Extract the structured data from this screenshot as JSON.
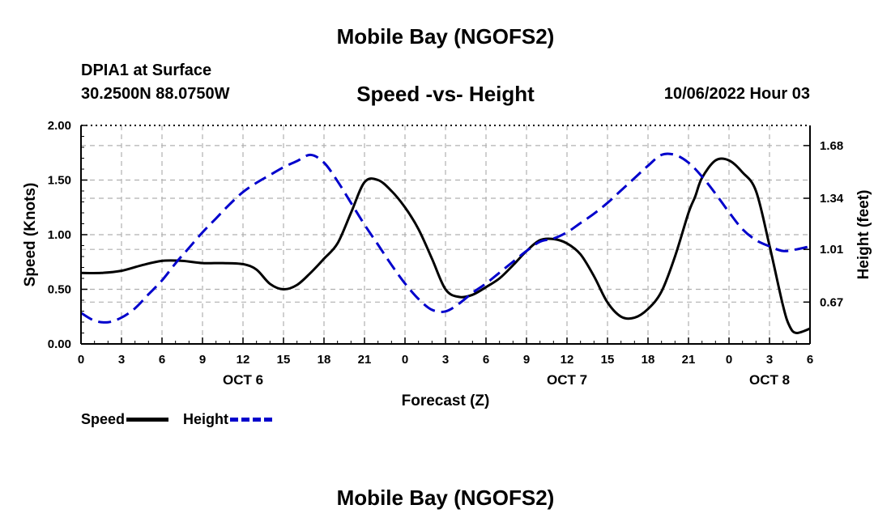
{
  "header": {
    "page_title": "Mobile Bay (NGOFS2)",
    "station": "DPIA1 at Surface",
    "coords": "30.2500N   88.0750W",
    "date": "10/06/2022 Hour 03",
    "footer_title": "Mobile Bay (NGOFS2)"
  },
  "colors": {
    "speed": "#000000",
    "height": "#0000cc",
    "grid": "#b0b0b0"
  },
  "chart_data": {
    "type": "line",
    "title": "Speed -vs- Height",
    "xlabel": "Forecast (Z)",
    "ylabel": "Speed (Knots)",
    "y2label": "Height (feet)",
    "xlim": [
      0,
      54
    ],
    "ylim": [
      0,
      2.0
    ],
    "y2lim": [
      0.4,
      1.81
    ],
    "x_ticks": [
      0,
      3,
      6,
      9,
      12,
      15,
      18,
      21,
      24,
      27,
      30,
      33,
      36,
      39,
      42,
      45,
      48,
      51,
      54
    ],
    "x_tick_labels": [
      "0",
      "3",
      "6",
      "9",
      "12",
      "15",
      "18",
      "21",
      "0",
      "3",
      "6",
      "9",
      "12",
      "15",
      "18",
      "21",
      "0",
      "3",
      "6"
    ],
    "date_labels": [
      {
        "x": 12,
        "label": "OCT 6"
      },
      {
        "x": 36,
        "label": "OCT 7"
      },
      {
        "x": 51,
        "label": "OCT 8"
      }
    ],
    "y_ticks": [
      0.0,
      0.5,
      1.0,
      1.5,
      2.0
    ],
    "y_tick_labels": [
      "0.00",
      "0.50",
      "1.00",
      "1.50",
      "2.00"
    ],
    "y2_ticks": [
      0.67,
      1.01,
      1.34,
      1.68
    ],
    "y2_tick_labels": [
      "0.67",
      "1.01",
      "1.34",
      "1.68"
    ],
    "legend": [
      {
        "name": "Speed",
        "style": "solid"
      },
      {
        "name": "Height",
        "style": "dashed"
      }
    ],
    "series": [
      {
        "name": "Speed",
        "axis": "left",
        "x": [
          0,
          1.5,
          3,
          4.5,
          6,
          7.5,
          9,
          10.5,
          12,
          13,
          14,
          15,
          16,
          17,
          18,
          19,
          20,
          21,
          22,
          23,
          24,
          25,
          26,
          27,
          28,
          29,
          30,
          31,
          32,
          33,
          34,
          35,
          36,
          37,
          38,
          39,
          40,
          41,
          42,
          43,
          44,
          45,
          45.5,
          46,
          47,
          48,
          49,
          50,
          51,
          52,
          52.5,
          53,
          54
        ],
        "values": [
          0.65,
          0.65,
          0.67,
          0.72,
          0.76,
          0.76,
          0.74,
          0.74,
          0.73,
          0.68,
          0.55,
          0.5,
          0.54,
          0.65,
          0.78,
          0.92,
          1.2,
          1.48,
          1.5,
          1.4,
          1.25,
          1.05,
          0.78,
          0.5,
          0.43,
          0.45,
          0.52,
          0.6,
          0.72,
          0.85,
          0.95,
          0.96,
          0.92,
          0.82,
          0.62,
          0.38,
          0.25,
          0.24,
          0.32,
          0.48,
          0.8,
          1.2,
          1.35,
          1.52,
          1.68,
          1.68,
          1.57,
          1.4,
          0.9,
          0.35,
          0.16,
          0.1,
          0.14
        ]
      },
      {
        "name": "Height",
        "axis": "right",
        "x": [
          0,
          1,
          2,
          3,
          4,
          5,
          6,
          7,
          8,
          9,
          10,
          11,
          12,
          13,
          14,
          15,
          16,
          17,
          18,
          19,
          20,
          21,
          22,
          23,
          24,
          25,
          26,
          27,
          28,
          29,
          30,
          31,
          32,
          33,
          34,
          35,
          36,
          37,
          38,
          39,
          40,
          41,
          42,
          43,
          44,
          45,
          46,
          47,
          48,
          49,
          50,
          51,
          52,
          53,
          54
        ],
        "values": [
          0.6,
          0.55,
          0.54,
          0.57,
          0.63,
          0.72,
          0.81,
          0.92,
          1.02,
          1.12,
          1.21,
          1.3,
          1.38,
          1.44,
          1.49,
          1.54,
          1.58,
          1.62,
          1.57,
          1.45,
          1.31,
          1.17,
          1.04,
          0.91,
          0.79,
          0.69,
          0.62,
          0.61,
          0.66,
          0.73,
          0.79,
          0.86,
          0.93,
          1.0,
          1.06,
          1.08,
          1.12,
          1.18,
          1.24,
          1.31,
          1.39,
          1.47,
          1.55,
          1.62,
          1.62,
          1.57,
          1.48,
          1.37,
          1.25,
          1.14,
          1.07,
          1.03,
          1.0,
          1.01,
          1.03
        ]
      }
    ]
  }
}
